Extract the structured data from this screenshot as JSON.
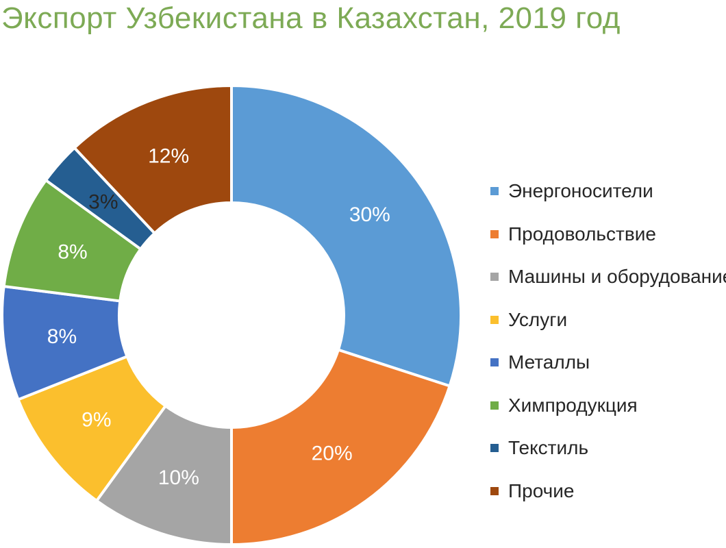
{
  "chart_data": {
    "type": "pie",
    "donut": true,
    "title": "Экспорт Узбекистана в Казахстан, 2019 год",
    "categories": [
      "Энергоносители",
      "Продовольствие",
      "Машины и оборудование",
      "Услуги",
      "Металлы",
      "Химпродукция",
      "Текстиль",
      "Прочие"
    ],
    "values": [
      30,
      20,
      10,
      9,
      8,
      8,
      3,
      12
    ],
    "labels": [
      "30%",
      "20%",
      "10%",
      "9%",
      "8%",
      "8%",
      "3%",
      "12%"
    ],
    "colors": [
      "#5b9bd5",
      "#ed7d31",
      "#a5a5a5",
      "#fbbf2d",
      "#4472c4",
      "#70ad47",
      "#255e91",
      "#9e480e"
    ],
    "label_colors": [
      "#ffffff",
      "#ffffff",
      "#ffffff",
      "#ffffff",
      "#ffffff",
      "#ffffff",
      "#262626",
      "#ffffff"
    ],
    "legend_position": "right"
  }
}
